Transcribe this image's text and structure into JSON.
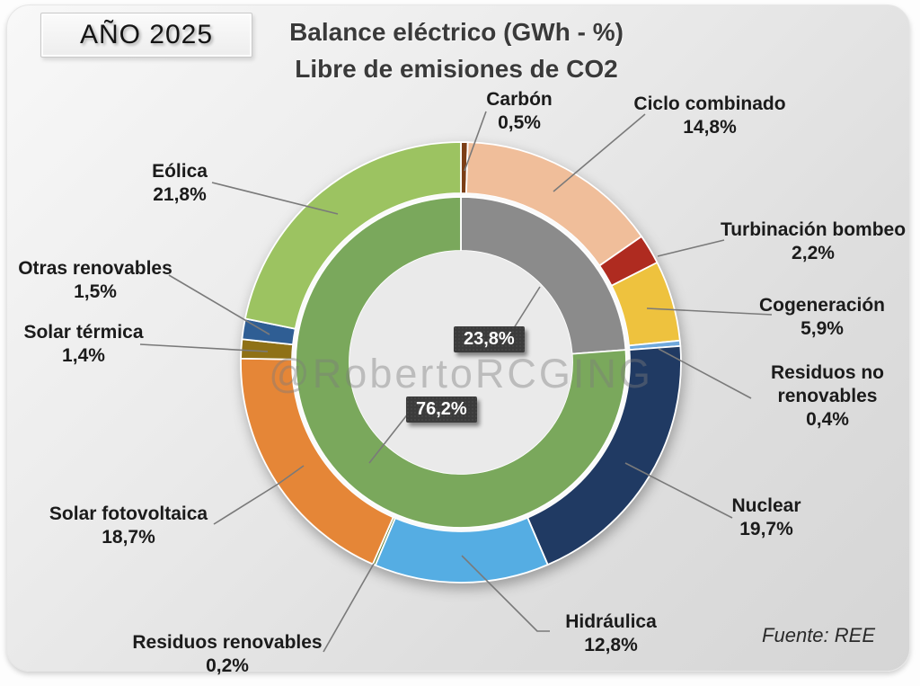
{
  "page": {
    "year_badge": "AÑO 2025",
    "title_line1": "Balance eléctrico (GWh - %)",
    "title_line2": "Libre de emisiones de CO2",
    "watermark": "@RobertoRCGING",
    "source": "Fuente: REE"
  },
  "chart_data": {
    "type": "donut",
    "title": "Balance eléctrico (GWh - %) Libre de emisiones de CO2",
    "units": "%",
    "legend_position": "callout-labels",
    "outer_ring": {
      "description": "Balance eléctrico por tecnología, sentido horario desde las 12",
      "segments": [
        {
          "id": "carbon",
          "label": "Carbón",
          "value": 0.5,
          "pct_label": "0,5%",
          "color": "#7C3E16"
        },
        {
          "id": "ciclo-combinado",
          "label": "Ciclo combinado",
          "value": 14.8,
          "pct_label": "14,8%",
          "color": "#F0BE9A"
        },
        {
          "id": "turbinacion-bombeo",
          "label": "Turbinación bombeo",
          "value": 2.2,
          "pct_label": "2,2%",
          "color": "#AF2B20"
        },
        {
          "id": "cogeneracion",
          "label": "Cogeneración",
          "value": 5.9,
          "pct_label": "5,9%",
          "color": "#EEC23E"
        },
        {
          "id": "residuos-no-renovables",
          "label": "Residuos no renovables",
          "value": 0.4,
          "pct_label": "0,4%",
          "color": "#6FA8DC"
        },
        {
          "id": "nuclear",
          "label": "Nuclear",
          "value": 19.7,
          "pct_label": "19,7%",
          "color": "#203A63"
        },
        {
          "id": "hidraulica",
          "label": "Hidráulica",
          "value": 12.8,
          "pct_label": "12,8%",
          "color": "#55ADE3"
        },
        {
          "id": "residuos-renovables",
          "label": "Residuos renovables",
          "value": 0.2,
          "pct_label": "0,2%",
          "color": "#5F7D2F"
        },
        {
          "id": "solar-fotovoltaica",
          "label": "Solar fotovoltaica",
          "value": 18.7,
          "pct_label": "18,7%",
          "color": "#E58637"
        },
        {
          "id": "solar-termica",
          "label": "Solar térmica",
          "value": 1.4,
          "pct_label": "1,4%",
          "color": "#8F7116"
        },
        {
          "id": "otras-renovables",
          "label": "Otras renovables",
          "value": 1.5,
          "pct_label": "1,5%",
          "color": "#2F5E94"
        },
        {
          "id": "eolica",
          "label": "Eólica",
          "value": 21.8,
          "pct_label": "21,8%",
          "color": "#9CC361"
        }
      ]
    },
    "inner_ring": {
      "description": "Cuota con emisiones (gris) frente a libre de CO2 (verde)",
      "segments": [
        {
          "id": "inner-emissions",
          "value": 23.8,
          "pct_label": "23,8%",
          "color": "#8B8B8B"
        },
        {
          "id": "inner-co2free",
          "value": 76.2,
          "pct_label": "76,2%",
          "color": "#7AA85C"
        }
      ]
    }
  }
}
